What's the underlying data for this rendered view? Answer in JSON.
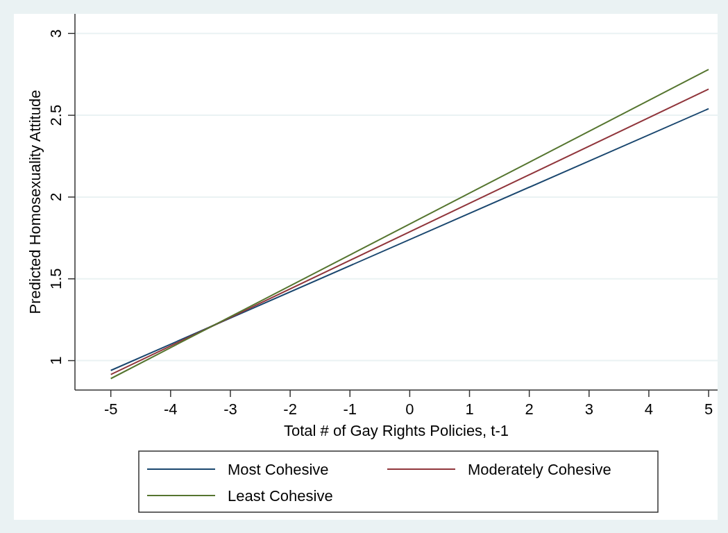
{
  "chart_data": {
    "type": "line",
    "xlabel": "Total # of Gay Rights Policies, t-1",
    "ylabel": "Predicted Homosexuality Attitude",
    "x": [
      -5,
      5
    ],
    "series": [
      {
        "name": "Most Cohesive",
        "color": "#1a476f",
        "values": [
          0.94,
          2.54
        ]
      },
      {
        "name": "Moderately Cohesive",
        "color": "#90353b",
        "values": [
          0.915,
          2.66
        ]
      },
      {
        "name": "Least Cohesive",
        "color": "#55752f",
        "values": [
          0.89,
          2.78
        ]
      }
    ],
    "xlim": [
      -5.6,
      5.15
    ],
    "ylim": [
      0.82,
      3.12
    ],
    "xticks": [
      -5,
      -4,
      -3,
      -2,
      -1,
      0,
      1,
      2,
      3,
      4,
      5
    ],
    "yticks": [
      1,
      1.5,
      2,
      2.5,
      3
    ],
    "grid": "y",
    "legend": "bottom",
    "marker": "none",
    "line_style": "solid"
  }
}
